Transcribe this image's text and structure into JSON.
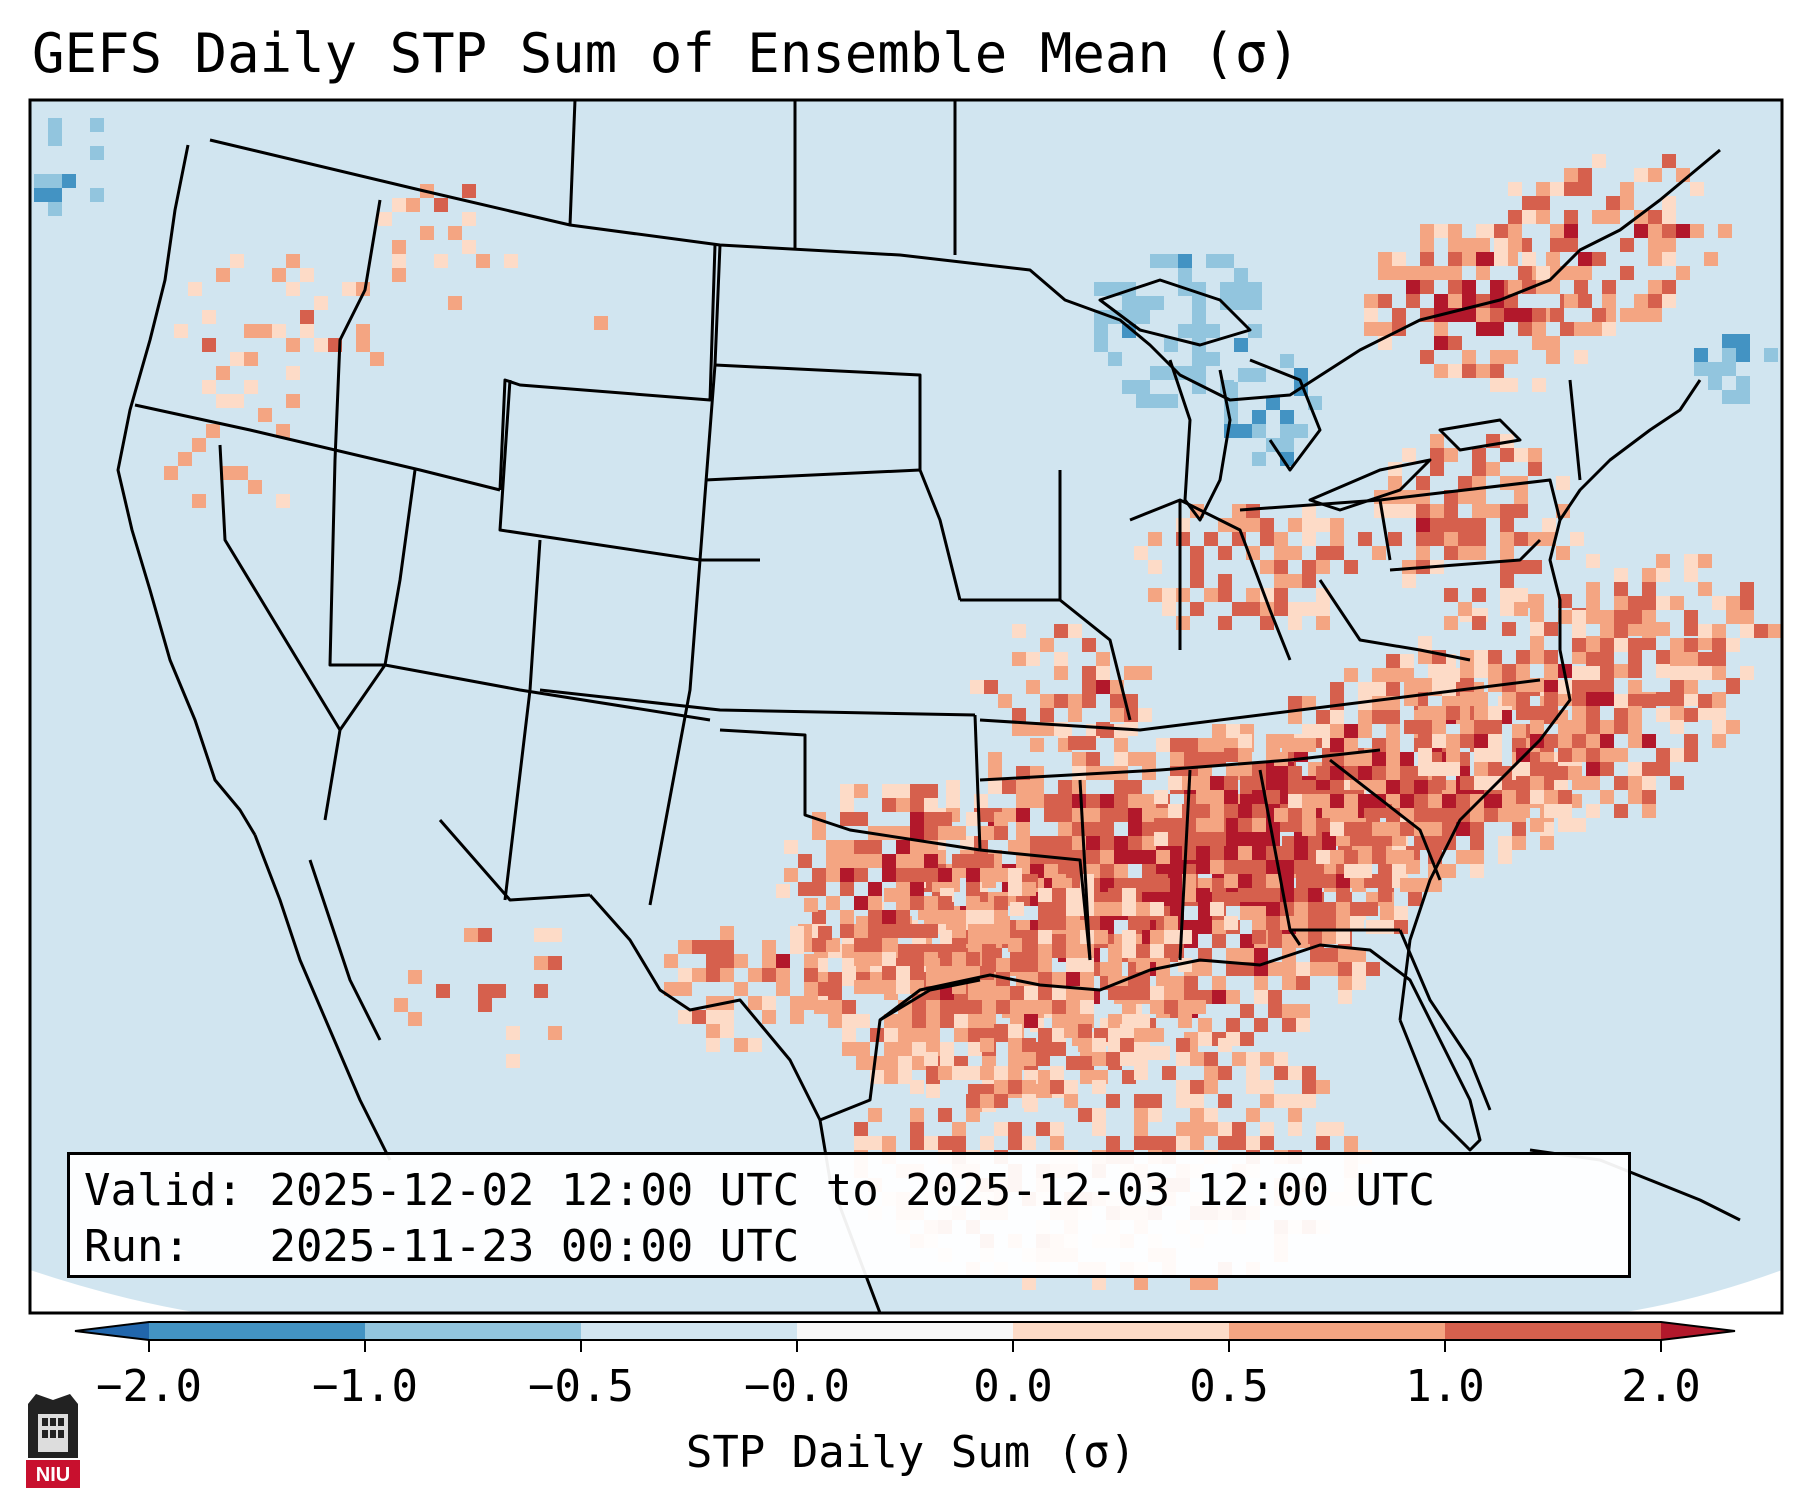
{
  "title": "GEFS Daily STP Sum of Ensemble Mean (σ)",
  "info": {
    "valid_label": "Valid:",
    "valid_text": "2025-12-02 12:00 UTC to 2025-12-03 12:00 UTC",
    "run_label": "Run:",
    "run_text": "2025-11-23 00:00 UTC"
  },
  "colorbar": {
    "label": "STP Daily Sum (σ)",
    "ticks": [
      "−2.0",
      "−1.0",
      "−0.5",
      "−0.0",
      "0.0",
      "0.5",
      "1.0",
      "2.0"
    ],
    "colors": [
      "#2166ac",
      "#4393c3",
      "#92c5de",
      "#d1e5f0",
      "#f7f7f7",
      "#fddbc7",
      "#f4a582",
      "#d6604d",
      "#b2182b"
    ]
  },
  "map": {
    "background_color": "#d1e5f0",
    "features": [
      "US state borders",
      "Canada",
      "Mexico",
      "Great Lakes",
      "Gulf of Mexico",
      "Cuba"
    ]
  },
  "logo": {
    "text": "NIU"
  }
}
